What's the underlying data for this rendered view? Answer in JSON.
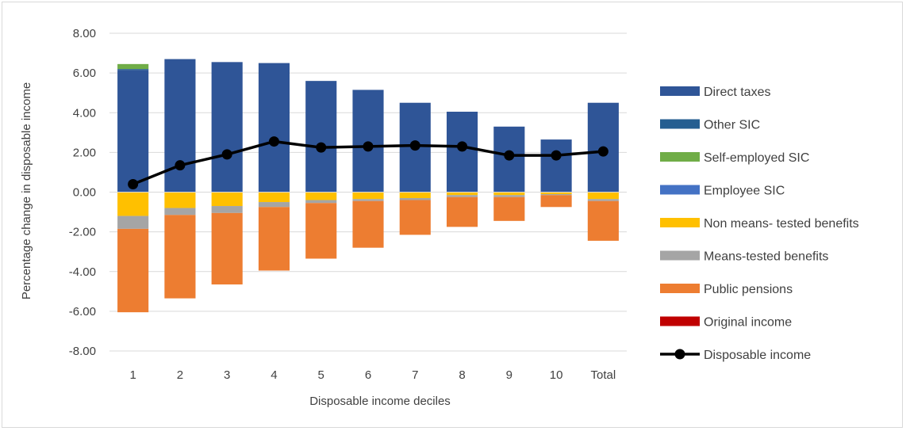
{
  "chart_data": {
    "type": "bar",
    "stacked": true,
    "categories": [
      "1",
      "2",
      "3",
      "4",
      "5",
      "6",
      "7",
      "8",
      "9",
      "10",
      "Total"
    ],
    "xlabel": "Disposable income deciles",
    "ylabel": "Percentage change in disposable income",
    "ylim": [
      -8,
      8
    ],
    "yticks": [
      "8.00",
      "6.00",
      "4.00",
      "2.00",
      "0.00",
      "-2.00",
      "-4.00",
      "-6.00",
      "-8.00"
    ],
    "grid": true,
    "legend_position": "right",
    "series": [
      {
        "name": "Direct taxes",
        "color": "#2f5597",
        "values": [
          6.15,
          6.7,
          6.55,
          6.5,
          5.6,
          5.15,
          4.5,
          4.05,
          3.3,
          2.65,
          4.5
        ]
      },
      {
        "name": "Other SIC",
        "color": "#255e91",
        "values": [
          0.05,
          0,
          0,
          0,
          0,
          0,
          0,
          0,
          0,
          0,
          0
        ]
      },
      {
        "name": "Self-employed SIC",
        "color": "#70ad47",
        "values": [
          0.25,
          0,
          0,
          0,
          0,
          0,
          0,
          0,
          0,
          0,
          0
        ]
      },
      {
        "name": "Employee SIC",
        "color": "#4472c4",
        "values": [
          0,
          0,
          0,
          0,
          0,
          0,
          0,
          0,
          0,
          0,
          0
        ]
      },
      {
        "name": "Non means- tested benefits",
        "color": "#ffc000",
        "values": [
          -1.2,
          -0.8,
          -0.7,
          -0.5,
          -0.4,
          -0.35,
          -0.3,
          -0.15,
          -0.15,
          -0.1,
          -0.35
        ]
      },
      {
        "name": "Means-tested benefits",
        "color": "#a5a5a5",
        "values": [
          -0.65,
          -0.35,
          -0.35,
          -0.25,
          -0.15,
          -0.1,
          -0.1,
          -0.1,
          -0.1,
          -0.05,
          -0.1
        ]
      },
      {
        "name": "Public pensions",
        "color": "#ed7d31",
        "values": [
          -4.2,
          -4.2,
          -3.6,
          -3.2,
          -2.8,
          -2.35,
          -1.75,
          -1.5,
          -1.2,
          -0.6,
          -2.0
        ]
      },
      {
        "name": "Original income",
        "color": "#c00000",
        "values": [
          0,
          0,
          0,
          0,
          0,
          0,
          0,
          0,
          0,
          0,
          0
        ]
      }
    ],
    "line_series": {
      "name": "Disposable income",
      "color": "#000000",
      "values": [
        0.4,
        1.35,
        1.9,
        2.55,
        2.25,
        2.3,
        2.35,
        2.3,
        1.85,
        1.85,
        2.05
      ]
    }
  }
}
